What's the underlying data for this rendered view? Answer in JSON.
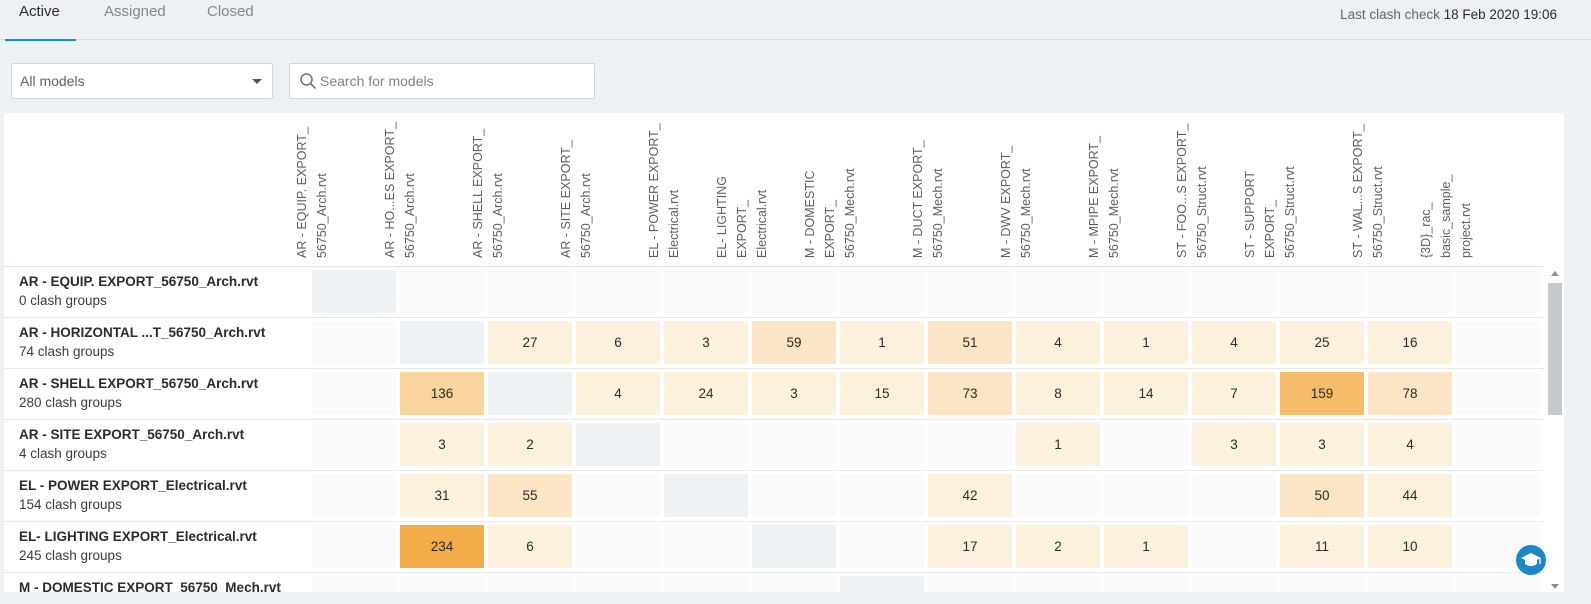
{
  "tabs": [
    {
      "label": "Active",
      "active": true
    },
    {
      "label": "Assigned",
      "active": false
    },
    {
      "label": "Closed",
      "active": false
    }
  ],
  "last_check": {
    "label": "Last clash check",
    "value": "18 Feb 2020 19:06"
  },
  "filter": {
    "selected": "All models"
  },
  "search": {
    "placeholder": "Search for models",
    "value": ""
  },
  "columns": [
    [
      "AR - EQUIP. EXPORT_",
      "56750_Arch.rvt"
    ],
    [
      "AR - HO...ES EXPORT_",
      "56750_Arch.rvt"
    ],
    [
      "AR - SHELL EXPORT_",
      "56750_Arch.rvt"
    ],
    [
      "AR - SITE EXPORT_",
      "56750_Arch.rvt"
    ],
    [
      "EL - POWER EXPORT_",
      "Electrical.rvt"
    ],
    [
      "EL- LIGHTING",
      "EXPORT_",
      "Electrical.rvt"
    ],
    [
      "M - DOMESTIC",
      "EXPORT_",
      "56750_Mech.rvt"
    ],
    [
      "M - DUCT EXPORT_",
      "56750_Mech.rvt"
    ],
    [
      "M - DWV EXPORT_",
      "56750_Mech.rvt"
    ],
    [
      "M - MPIPE EXPORT_",
      "56750_Mech.rvt"
    ],
    [
      "ST - FOO...S EXPORT_",
      "56750_Struct.rvt"
    ],
    [
      "ST - SUPPORT",
      "EXPORT_",
      "56750_Struct.rvt"
    ],
    [
      "ST - WAL...S EXPORT_",
      "56750_Struct.rvt"
    ],
    [
      "{3D}_rac_",
      "basic_sample_",
      "project.rvt"
    ]
  ],
  "rows": [
    {
      "name": "AR - EQUIP. EXPORT_56750_Arch.rvt",
      "count": "0 clash groups",
      "cells": [
        "",
        "",
        "",
        "",
        "",
        "",
        "",
        "",
        "",
        "",
        "",
        "",
        "",
        ""
      ]
    },
    {
      "name": "AR - HORIZONTAL ...T_56750_Arch.rvt",
      "count": "74 clash groups",
      "cells": [
        "",
        "",
        "27",
        "6",
        "3",
        "59",
        "1",
        "51",
        "4",
        "1",
        "4",
        "25",
        "16",
        ""
      ]
    },
    {
      "name": "AR - SHELL EXPORT_56750_Arch.rvt",
      "count": "280 clash groups",
      "cells": [
        "",
        "136",
        "",
        "4",
        "24",
        "3",
        "15",
        "73",
        "8",
        "14",
        "7",
        "159",
        "78",
        ""
      ]
    },
    {
      "name": "AR - SITE EXPORT_56750_Arch.rvt",
      "count": "4 clash groups",
      "cells": [
        "",
        "3",
        "2",
        "",
        "",
        "",
        "",
        "",
        "1",
        "",
        "3",
        "3",
        "4",
        ""
      ]
    },
    {
      "name": "EL - POWER EXPORT_Electrical.rvt",
      "count": "154 clash groups",
      "cells": [
        "",
        "31",
        "55",
        "",
        "",
        "",
        "",
        "42",
        "",
        "",
        "",
        "50",
        "44",
        ""
      ]
    },
    {
      "name": "EL- LIGHTING EXPORT_Electrical.rvt",
      "count": "245 clash groups",
      "cells": [
        "",
        "234",
        "6",
        "",
        "",
        "",
        "",
        "17",
        "2",
        "1",
        "",
        "11",
        "10",
        ""
      ]
    },
    {
      "name": "M - DOMESTIC EXPORT_56750_Mech.rvt",
      "count": "",
      "cells": [
        "",
        "",
        "",
        "",
        "",
        "",
        "",
        "",
        "",
        "",
        "",
        "",
        "",
        ""
      ]
    }
  ],
  "icons": {
    "search": "search-icon",
    "dropdown": "chevron-down-icon",
    "help": "graduation-cap-icon"
  },
  "colors": {
    "accent": "#0696d7",
    "heat_low": "#fdf0dc",
    "heat_high": "#f3ad48",
    "diagonal": "#eff2f5"
  }
}
